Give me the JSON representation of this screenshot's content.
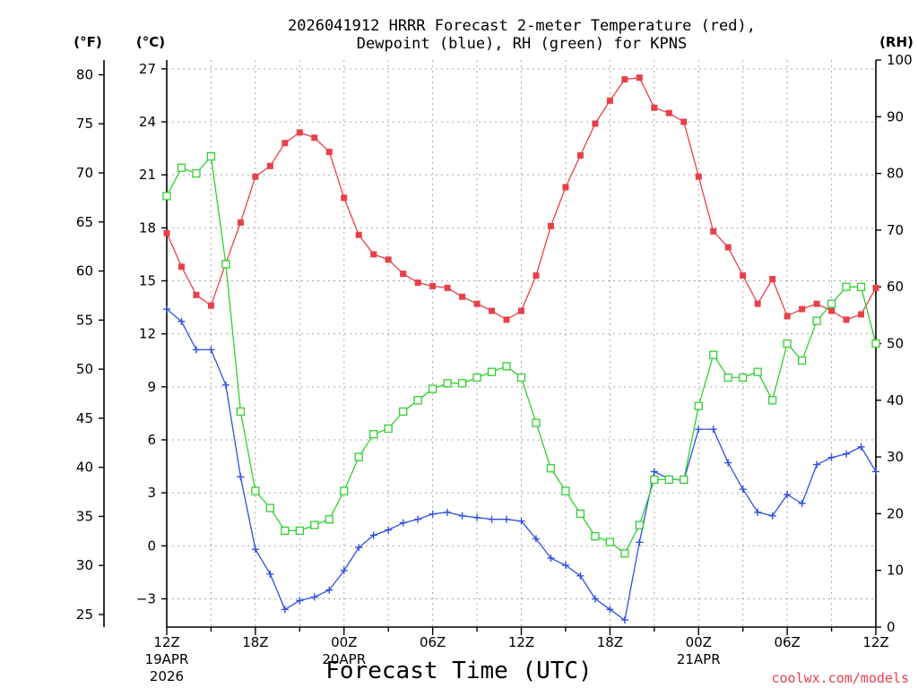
{
  "chart_data": {
    "type": "line",
    "title_line1": "2026041912 HRRR Forecast 2-meter Temperature (red),",
    "title_line2": "Dewpoint (blue), RH (green) for KPNS",
    "xlabel": "Forecast Time (UTC)",
    "credit": "coolwx.com/models",
    "unit_f": "(°F)",
    "unit_c": "(°C)",
    "unit_rh": "(RH)",
    "x_hours": [
      0,
      1,
      2,
      3,
      4,
      5,
      6,
      7,
      8,
      9,
      10,
      11,
      12,
      13,
      14,
      15,
      16,
      17,
      18,
      19,
      20,
      21,
      22,
      23,
      24,
      25,
      26,
      27,
      28,
      29,
      30,
      31,
      32,
      33,
      34,
      35,
      36,
      37,
      38,
      39,
      40,
      41,
      42,
      43,
      44,
      45,
      46,
      47,
      48
    ],
    "x_ticks": [
      {
        "hour": 0,
        "label": "12Z",
        "sub1": "19APR",
        "sub2": "2026"
      },
      {
        "hour": 6,
        "label": "18Z",
        "sub1": "",
        "sub2": ""
      },
      {
        "hour": 12,
        "label": "00Z",
        "sub1": "20APR",
        "sub2": ""
      },
      {
        "hour": 18,
        "label": "06Z",
        "sub1": "",
        "sub2": ""
      },
      {
        "hour": 24,
        "label": "12Z",
        "sub1": "",
        "sub2": ""
      },
      {
        "hour": 30,
        "label": "18Z",
        "sub1": "",
        "sub2": ""
      },
      {
        "hour": 36,
        "label": "00Z",
        "sub1": "21APR",
        "sub2": ""
      },
      {
        "hour": 42,
        "label": "06Z",
        "sub1": "",
        "sub2": ""
      },
      {
        "hour": 48,
        "label": "12Z",
        "sub1": "",
        "sub2": ""
      }
    ],
    "xlim": [
      0,
      48
    ],
    "ylim_c": [
      -4.6,
      27.5
    ],
    "yticks_c": [
      -3,
      0,
      3,
      6,
      9,
      12,
      15,
      18,
      21,
      24,
      27
    ],
    "yticks_f": [
      25,
      30,
      35,
      40,
      45,
      50,
      55,
      60,
      65,
      70,
      75,
      80
    ],
    "ylim_rh": [
      0,
      100
    ],
    "yticks_rh": [
      0,
      10,
      20,
      30,
      40,
      50,
      60,
      70,
      80,
      90,
      100
    ],
    "grid": true,
    "series": [
      {
        "name": "Temperature",
        "axis": "c",
        "color": "#e8404a",
        "marker": "filled-square",
        "values": [
          17.7,
          15.8,
          14.2,
          13.6,
          16.0,
          18.3,
          20.9,
          21.5,
          22.8,
          23.4,
          23.1,
          22.3,
          19.7,
          17.6,
          16.5,
          16.2,
          15.4,
          14.9,
          14.7,
          14.6,
          14.1,
          13.7,
          13.3,
          12.8,
          13.3,
          15.3,
          18.1,
          20.3,
          22.1,
          23.9,
          25.2,
          26.4,
          26.5,
          24.8,
          24.5,
          24.0,
          20.9,
          17.8,
          16.9,
          15.3,
          13.7,
          15.1,
          13.0,
          13.4,
          13.7,
          13.3,
          12.8,
          13.1,
          14.6
        ]
      },
      {
        "name": "Dewpoint",
        "axis": "c",
        "color": "#3050e0",
        "marker": "plus",
        "values": [
          13.4,
          12.7,
          11.1,
          11.1,
          9.1,
          3.9,
          -0.2,
          -1.6,
          -3.6,
          -3.1,
          -2.9,
          -2.5,
          -1.4,
          -0.1,
          0.6,
          0.9,
          1.3,
          1.5,
          1.8,
          1.9,
          1.7,
          1.6,
          1.5,
          1.5,
          1.4,
          0.4,
          -0.7,
          -1.1,
          -1.7,
          -3.0,
          -3.6,
          -4.2,
          0.2,
          4.2,
          3.8,
          3.7,
          6.6,
          6.6,
          4.7,
          3.2,
          1.9,
          1.7,
          2.9,
          2.4,
          4.6,
          5.0,
          5.2,
          5.6,
          4.2
        ]
      },
      {
        "name": "RH",
        "axis": "rh",
        "color": "#30d030",
        "marker": "open-square",
        "values": [
          76,
          81,
          80,
          83,
          64,
          38,
          24,
          21,
          17,
          17,
          18,
          19,
          24,
          30,
          34,
          35,
          38,
          40,
          42,
          43,
          43,
          44,
          45,
          46,
          44,
          36,
          28,
          24,
          20,
          16,
          15,
          13,
          18,
          26,
          26,
          26,
          39,
          48,
          44,
          44,
          45,
          40,
          50,
          47,
          54,
          57,
          60,
          60,
          50
        ]
      }
    ]
  }
}
